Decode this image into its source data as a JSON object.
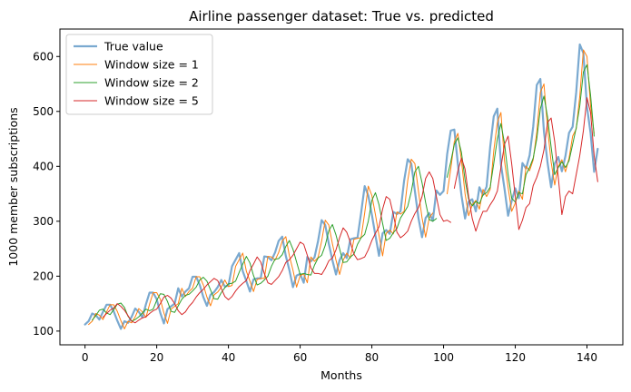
{
  "chart_data": {
    "type": "line",
    "title": "Airline passenger dataset: True vs. predicted",
    "xlabel": "Months",
    "ylabel": "1000 member subscriptions",
    "xlim": [
      -7,
      150
    ],
    "ylim": [
      75,
      650
    ],
    "xticks": [
      0,
      20,
      40,
      60,
      80,
      100,
      120,
      140
    ],
    "yticks": [
      100,
      200,
      300,
      400,
      500,
      600
    ],
    "grid": false,
    "legend_position": "top-left",
    "series": [
      {
        "name": "True value",
        "color": "#7aa9d0",
        "start": 0,
        "values": [
          112,
          118,
          132,
          129,
          121,
          135,
          148,
          148,
          136,
          119,
          104,
          118,
          115,
          126,
          141,
          135,
          125,
          149,
          170,
          170,
          158,
          133,
          114,
          140,
          145,
          150,
          178,
          163,
          172,
          178,
          199,
          199,
          184,
          162,
          146,
          166,
          171,
          180,
          193,
          181,
          183,
          218,
          230,
          242,
          209,
          191,
          172,
          194,
          196,
          196,
          236,
          235,
          229,
          243,
          264,
          272,
          237,
          211,
          180,
          201,
          204,
          188,
          235,
          227,
          234,
          264,
          302,
          293,
          259,
          229,
          203,
          229,
          242,
          233,
          267,
          269,
          270,
          315,
          364,
          347,
          312,
          274,
          237,
          278,
          284,
          277,
          317,
          313,
          318,
          374,
          413,
          405,
          355,
          306,
          271,
          306,
          315,
          301,
          356,
          348,
          355,
          422,
          465,
          467,
          404,
          347,
          305,
          336,
          340,
          318,
          362,
          348,
          363,
          435,
          491,
          505,
          404,
          359,
          310,
          337,
          360,
          342,
          406,
          396,
          420,
          472,
          548,
          559,
          463,
          407,
          362,
          405,
          417,
          391,
          419,
          461,
          472,
          535,
          622,
          606,
          508,
          461,
          390,
          432
        ]
      },
      {
        "name": "Window size = 1",
        "color": "#ff7f0e",
        "start": 1,
        "segments": [
          {
            "start": 1,
            "values": [
              112,
              118,
              132,
              129,
              121,
              135,
              148,
              148,
              136,
              119,
              104,
              118,
              115,
              126,
              141,
              135,
              125,
              149,
              170,
              170,
              158,
              133,
              114,
              140,
              145,
              150,
              178,
              163,
              172,
              178,
              199,
              199,
              184,
              162,
              146,
              166,
              171,
              180,
              193,
              181,
              183,
              218,
              230,
              242,
              209,
              191,
              172,
              194,
              196,
              196,
              236,
              235,
              229,
              243,
              264,
              272,
              237,
              211,
              180,
              201,
              204,
              188,
              235,
              227,
              234,
              264,
              302,
              293,
              259,
              229,
              203,
              229,
              242,
              233,
              267,
              269,
              270,
              315,
              364,
              347,
              312,
              274,
              237,
              278,
              284,
              277,
              317,
              313,
              318,
              374,
              413,
              405,
              355,
              306,
              271,
              306,
              315
            ]
          },
          {
            "start": 101,
            "values": [
              350,
              395,
              445,
              460,
              410,
              350,
              310,
              330,
              338,
              322,
              358,
              345,
              358,
              428,
              480,
              498,
              410,
              362,
              318,
              333,
              355,
              340,
              400,
              392,
              412,
              462,
              535,
              550,
              470,
              408,
              366,
              400,
              412,
              390,
              415,
              455,
              468,
              528,
              612,
              600,
              510,
              460
            ]
          }
        ]
      },
      {
        "name": "Window size = 2",
        "color": "#2ca02c",
        "start": 2,
        "segments": [
          {
            "start": 2,
            "values": [
              120,
              128,
              138,
              140,
              133,
              130,
              139,
              149,
              151,
              143,
              127,
              118,
              121,
              126,
              133,
              140,
              137,
              140,
              156,
              168,
              167,
              154,
              136,
              134,
              146,
              158,
              165,
              167,
              173,
              180,
              193,
              198,
              191,
              175,
              159,
              158,
              170,
              179,
              186,
              187,
              191,
              207,
              222,
              236,
              224,
              201,
              184,
              187,
              193,
              200,
              218,
              231,
              232,
              239,
              254,
              265,
              249,
              226,
              203,
              205,
              203,
              202,
              220,
              233,
              238,
              256,
              283,
              294,
              275,
              250,
              225,
              226,
              235,
              240,
              258,
              270,
              276,
              300,
              338,
              352,
              330,
              296,
              265,
              269,
              279,
              287,
              306,
              316,
              327,
              354,
              390,
              400,
              370,
              334,
              303,
              300,
              305
            ]
          },
          {
            "start": 101,
            "values": [
              380,
              408,
              440,
              452,
              425,
              375,
              340,
              328,
              336,
              332,
              348,
              352,
              362,
              405,
              450,
              478,
              442,
              385,
              342,
              335,
              352,
              350,
              385,
              398,
              415,
              450,
              505,
              528,
              490,
              435,
              385,
              398,
              408,
              398,
              410,
              440,
              470,
              510,
              572,
              585,
              530,
              455
            ]
          }
        ]
      },
      {
        "name": "Window size = 5",
        "color": "#d62728",
        "start": 5,
        "segments": [
          {
            "start": 5,
            "values": [
              125,
              132,
              138,
              142,
              150,
              145,
              138,
              128,
              118,
              115,
              120,
              124,
              126,
              132,
              137,
              140,
              150,
              162,
              165,
              160,
              150,
              137,
              130,
              135,
              145,
              152,
              162,
              170,
              176,
              184,
              190,
              196,
              192,
              178,
              163,
              157,
              163,
              173,
              181,
              187,
              192,
              210,
              222,
              235,
              226,
              205,
              188,
              185,
              192,
              199,
              210,
              225,
              230,
              238,
              250,
              262,
              258,
              238,
              215,
              205,
              205,
              203,
              214,
              228,
              233,
              248,
              270,
              288,
              280,
              262,
              240,
              230,
              232,
              235,
              248,
              265,
              278,
              290,
              322,
              345,
              340,
              312,
              280,
              270,
              275,
              282,
              300,
              314,
              325,
              345,
              378,
              390,
              378,
              345,
              312,
              300,
              302,
              298
            ]
          },
          {
            "start": 103,
            "values": [
              360,
              392,
              415,
              395,
              345,
              305,
              282,
              302,
              318,
              318,
              330,
              340,
              355,
              398,
              440,
              455,
              405,
              345,
              285,
              302,
              325,
              332,
              365,
              380,
              400,
              430,
              480,
              488,
              445,
              380,
              312,
              345,
              355,
              350,
              385,
              420,
              465,
              525,
              498,
              420,
              372
            ]
          }
        ]
      }
    ]
  }
}
